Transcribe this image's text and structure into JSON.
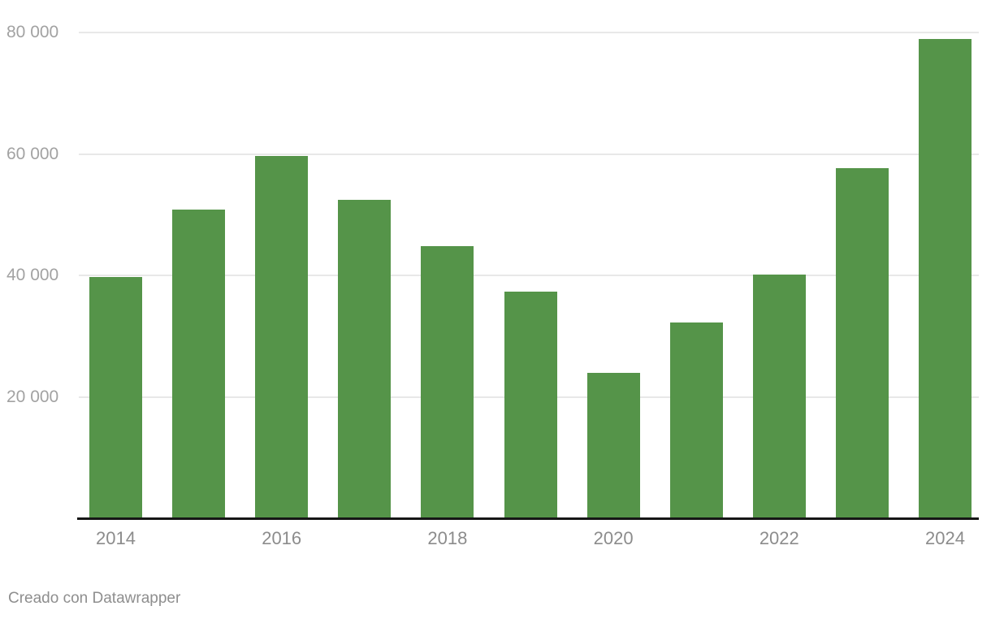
{
  "chart_data": {
    "type": "bar",
    "categories": [
      "2014",
      "2015",
      "2016",
      "2017",
      "2018",
      "2019",
      "2020",
      "2021",
      "2022",
      "2023",
      "2024"
    ],
    "values": [
      39800,
      50800,
      59700,
      52400,
      44800,
      37300,
      24000,
      32300,
      40200,
      57600,
      78900
    ],
    "title": "",
    "xlabel": "",
    "ylabel": "",
    "ylim": [
      0,
      80000
    ],
    "yticks": [
      {
        "value": 20000,
        "label": "20 000"
      },
      {
        "value": 40000,
        "label": "40 000"
      },
      {
        "value": 60000,
        "label": "60 000"
      },
      {
        "value": 80000,
        "label": "80 000"
      }
    ],
    "xticks": [
      {
        "category": "2014",
        "label": "2014"
      },
      {
        "category": "2016",
        "label": "2016"
      },
      {
        "category": "2018",
        "label": "2018"
      },
      {
        "category": "2020",
        "label": "2020"
      },
      {
        "category": "2022",
        "label": "2022"
      },
      {
        "category": "2024",
        "label": "2024"
      }
    ],
    "grid": true,
    "legend": "none",
    "bar_color": "#559449"
  },
  "colors": {
    "bar": "#559449",
    "gridline": "#e8e8e8",
    "axis_line": "#161616",
    "y_tick_text": "#a2a2a2",
    "x_tick_text": "#8c8c8c",
    "footer_text": "#8e8e8e",
    "background": "#ffffff"
  },
  "footer": {
    "credit": "Creado con Datawrapper"
  }
}
